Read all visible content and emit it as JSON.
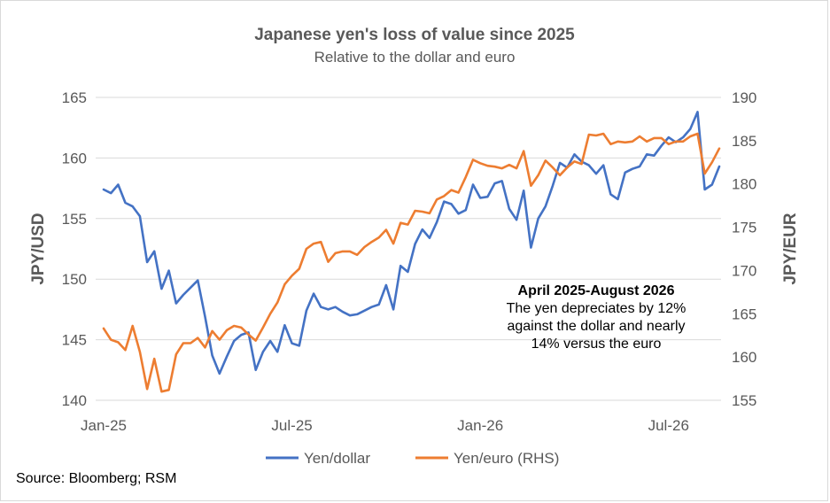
{
  "chart_data": {
    "type": "line",
    "title": "Japanese yen's loss of value since 2025",
    "subtitle": "Relative to the dollar and euro",
    "ylabel_left": "JPY/USD",
    "ylabel_right": "JPY/EUR",
    "ylim_left": [
      140,
      165
    ],
    "ylim_right": [
      155,
      190
    ],
    "yticks_left": [
      "140",
      "145",
      "150",
      "155",
      "160",
      "165"
    ],
    "yticks_right": [
      "155",
      "160",
      "165",
      "170",
      "175",
      "180",
      "185",
      "190"
    ],
    "xticks": [
      {
        "label": "Jan-25",
        "index": 0
      },
      {
        "label": "Jul-25",
        "index": 26
      },
      {
        "label": "Jan-26",
        "index": 52
      },
      {
        "label": "Jul-26",
        "index": 78
      }
    ],
    "grid": true,
    "legend_position": "bottom",
    "series": [
      {
        "name": "Yen/dollar",
        "axis": "left",
        "color": "#4472c4",
        "values": [
          157.4,
          157.1,
          157.8,
          156.3,
          156.0,
          155.2,
          151.4,
          152.3,
          149.2,
          150.7,
          148.0,
          148.7,
          149.3,
          149.9,
          146.9,
          143.7,
          142.2,
          143.6,
          144.9,
          145.4,
          145.6,
          142.5,
          144.0,
          144.9,
          144.0,
          146.2,
          144.7,
          144.5,
          147.4,
          148.8,
          147.7,
          147.5,
          147.7,
          147.3,
          147.0,
          147.1,
          147.4,
          147.7,
          147.9,
          149.5,
          147.5,
          151.1,
          150.6,
          152.9,
          154.1,
          153.4,
          154.7,
          156.4,
          156.2,
          155.4,
          155.7,
          157.8,
          156.7,
          156.8,
          157.9,
          158.1,
          155.8,
          154.9,
          157.3,
          152.6,
          155.0,
          156.0,
          157.7,
          159.6,
          159.2,
          160.3,
          159.7,
          159.4,
          158.7,
          159.4,
          157.0,
          156.6,
          158.8,
          159.1,
          159.3,
          160.3,
          160.2,
          161.0,
          161.7,
          161.3,
          161.7,
          162.4,
          163.8,
          157.4,
          157.8,
          159.3
        ]
      },
      {
        "name": "Yen/euro (RHS)",
        "axis": "right",
        "color": "#ed7d31",
        "values": [
          163.3,
          162.0,
          161.7,
          160.8,
          163.6,
          160.6,
          156.3,
          159.8,
          156.0,
          156.2,
          160.3,
          161.6,
          161.6,
          162.2,
          161.1,
          163.0,
          162.0,
          163.1,
          163.6,
          163.4,
          162.6,
          161.9,
          163.4,
          165.0,
          166.3,
          168.4,
          169.4,
          170.2,
          172.5,
          173.1,
          173.3,
          171.0,
          172.0,
          172.2,
          172.2,
          171.8,
          172.7,
          173.3,
          173.8,
          174.7,
          173.1,
          175.5,
          175.3,
          176.9,
          176.8,
          176.6,
          178.2,
          178.6,
          179.3,
          179.0,
          180.8,
          182.8,
          182.4,
          182.1,
          182.0,
          181.8,
          182.2,
          181.8,
          183.8,
          179.8,
          181.0,
          182.7,
          181.9,
          181.0,
          181.9,
          182.6,
          182.3,
          185.7,
          185.6,
          185.8,
          184.6,
          184.9,
          184.8,
          184.9,
          185.5,
          184.9,
          185.3,
          185.3,
          184.6,
          184.9,
          184.9,
          185.5,
          185.8,
          181.2,
          182.5,
          184.1
        ]
      }
    ],
    "annotation": {
      "heading": "April 2025-August 2026",
      "lines": [
        "The yen depreciates by 12%",
        "against the dollar and nearly",
        "14% versus the euro"
      ]
    }
  },
  "source": "Source: Bloomberg; RSM"
}
